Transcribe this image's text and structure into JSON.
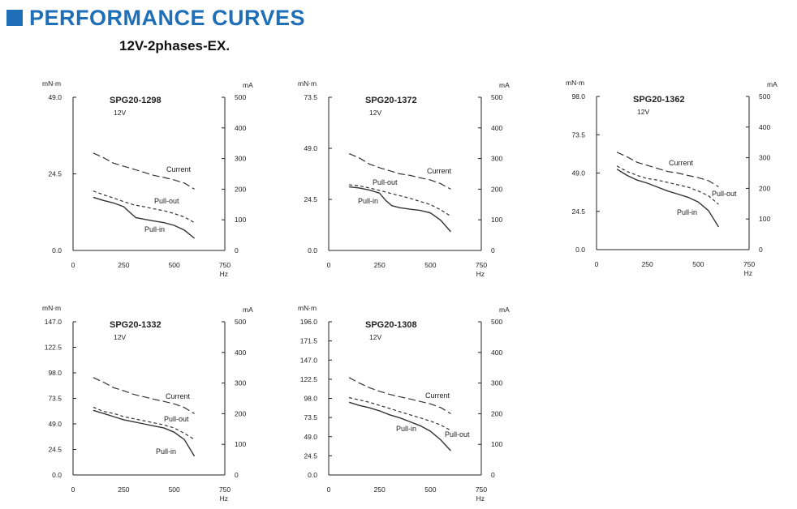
{
  "header": {
    "title": "PERFORMANCE CURVES",
    "subtitle": "12V-2phases-EX."
  },
  "colors": {
    "brand": "#1f6fb8",
    "line": "#333333"
  },
  "common": {
    "left_unit": "mN·m",
    "right_unit": "mA",
    "x_unit": "Hz",
    "x_ticks": [
      0,
      250,
      500,
      750
    ],
    "right_ticks": [
      0,
      100,
      200,
      300,
      400,
      500
    ]
  },
  "chart_data": [
    {
      "type": "line",
      "title": "SPG20-1298",
      "voltage": "12V",
      "xlim": [
        0,
        750
      ],
      "ylim_left": [
        0,
        49.0
      ],
      "left_ticks": [
        "0.0",
        "24.5",
        "49.0"
      ],
      "ylim_right": [
        0,
        500
      ],
      "series": [
        {
          "name": "Current",
          "axis": "right",
          "style": "long-dash",
          "x": [
            100,
            150,
            200,
            250,
            300,
            350,
            400,
            450,
            500,
            550,
            600
          ],
          "y": [
            318,
            303,
            285,
            275,
            265,
            255,
            245,
            238,
            230,
            220,
            200
          ]
        },
        {
          "name": "Pull-out",
          "axis": "left",
          "style": "dash",
          "x": [
            100,
            150,
            200,
            250,
            300,
            350,
            400,
            450,
            500,
            550,
            600
          ],
          "y": [
            19,
            17.8,
            16.8,
            15.6,
            14.6,
            14.0,
            13.3,
            12.7,
            11.8,
            10.7,
            8.9
          ]
        },
        {
          "name": "Pull-in",
          "axis": "left",
          "style": "solid",
          "x": [
            100,
            150,
            200,
            250,
            280,
            310,
            350,
            400,
            450,
            500,
            550,
            600
          ],
          "y": [
            17.0,
            16.0,
            15.2,
            14.0,
            12.2,
            10.5,
            10.0,
            9.4,
            8.9,
            8.0,
            6.5,
            3.9
          ]
        }
      ],
      "labels": [
        {
          "text": "Current",
          "series": "Current"
        },
        {
          "text": "Pull-out",
          "series": "Pull-out"
        },
        {
          "text": "Pull-in",
          "series": "Pull-in"
        }
      ]
    },
    {
      "type": "line",
      "title": "SPG20-1372",
      "voltage": "12V",
      "xlim": [
        0,
        750
      ],
      "ylim_left": [
        0,
        73.5
      ],
      "left_ticks": [
        "0.0",
        "24.5",
        "49.0",
        "73.5"
      ],
      "ylim_right": [
        0,
        500
      ],
      "series": [
        {
          "name": "Current",
          "axis": "right",
          "style": "long-dash",
          "x": [
            100,
            150,
            200,
            250,
            300,
            350,
            400,
            450,
            500,
            550,
            600
          ],
          "y": [
            316,
            302,
            282,
            270,
            260,
            250,
            245,
            237,
            230,
            218,
            200
          ]
        },
        {
          "name": "Pull-out",
          "axis": "left",
          "style": "dash",
          "x": [
            100,
            150,
            200,
            250,
            300,
            350,
            400,
            450,
            500,
            550,
            600
          ],
          "y": [
            31.5,
            31.0,
            30.0,
            28.8,
            27.5,
            26.3,
            25.0,
            23.5,
            22.0,
            19.5,
            16.5
          ]
        },
        {
          "name": "Pull-in",
          "axis": "left",
          "style": "solid",
          "x": [
            100,
            150,
            200,
            250,
            280,
            310,
            350,
            400,
            450,
            500,
            550,
            600
          ],
          "y": [
            30.5,
            30.0,
            29.0,
            27.5,
            24.0,
            21.5,
            20.5,
            19.8,
            19.2,
            18.0,
            14.5,
            9.0
          ]
        }
      ],
      "labels": [
        {
          "text": "Current",
          "series": "Current"
        },
        {
          "text": "Pull-out",
          "series": "Pull-out"
        },
        {
          "text": "Pull-in",
          "series": "Pull-in"
        }
      ]
    },
    {
      "type": "line",
      "title": "SPG20-1362",
      "voltage": "12V",
      "xlim": [
        0,
        750
      ],
      "ylim_left": [
        0,
        98.0
      ],
      "left_ticks": [
        "0.0",
        "24.5",
        "49.0",
        "73.5",
        "98.0"
      ],
      "ylim_right": [
        0,
        500
      ],
      "series": [
        {
          "name": "Current",
          "axis": "right",
          "style": "long-dash",
          "x": [
            100,
            150,
            200,
            250,
            300,
            350,
            400,
            450,
            500,
            550,
            600
          ],
          "y": [
            318,
            303,
            285,
            275,
            265,
            255,
            250,
            242,
            235,
            225,
            205
          ]
        },
        {
          "name": "Pull-out",
          "axis": "left",
          "style": "dash",
          "x": [
            100,
            150,
            200,
            250,
            300,
            350,
            400,
            450,
            500,
            550,
            600
          ],
          "y": [
            53.5,
            50.0,
            47.5,
            45.5,
            44.5,
            43.0,
            41.5,
            40.0,
            37.5,
            34.5,
            29.0
          ]
        },
        {
          "name": "Pull-in",
          "axis": "left",
          "style": "solid",
          "x": [
            100,
            150,
            200,
            250,
            300,
            350,
            400,
            450,
            500,
            550,
            600
          ],
          "y": [
            51.5,
            47.5,
            44.5,
            42.5,
            40.0,
            37.5,
            35.5,
            33.5,
            30.5,
            25.0,
            14.5
          ]
        }
      ],
      "labels": [
        {
          "text": "Current",
          "series": "Current"
        },
        {
          "text": "Pull-out",
          "series": "Pull-out"
        },
        {
          "text": "Pull-in",
          "series": "Pull-in"
        }
      ]
    },
    {
      "type": "line",
      "title": "SPG20-1332",
      "voltage": "12V",
      "xlim": [
        0,
        750
      ],
      "ylim_left": [
        0,
        147.0
      ],
      "left_ticks": [
        "0.0",
        "24.5",
        "49.0",
        "73.5",
        "98.0",
        "122.5",
        "147.0"
      ],
      "ylim_right": [
        0,
        500
      ],
      "series": [
        {
          "name": "Current",
          "axis": "right",
          "style": "long-dash",
          "x": [
            100,
            150,
            200,
            250,
            300,
            350,
            400,
            450,
            500,
            550,
            600
          ],
          "y": [
            318,
            303,
            285,
            275,
            263,
            255,
            247,
            240,
            232,
            220,
            200
          ]
        },
        {
          "name": "Pull-out",
          "axis": "left",
          "style": "dash",
          "x": [
            100,
            150,
            200,
            250,
            300,
            350,
            400,
            450,
            500,
            550,
            600
          ],
          "y": [
            65,
            61,
            59,
            56,
            54,
            52,
            50,
            48,
            45,
            40,
            34
          ]
        },
        {
          "name": "Pull-in",
          "axis": "left",
          "style": "solid",
          "x": [
            100,
            150,
            200,
            250,
            300,
            350,
            400,
            450,
            500,
            550,
            600
          ],
          "y": [
            62,
            59,
            56,
            53,
            51,
            49,
            47,
            45,
            41,
            34,
            18
          ]
        }
      ],
      "labels": [
        {
          "text": "Current",
          "series": "Current"
        },
        {
          "text": "Pull-out",
          "series": "Pull-out"
        },
        {
          "text": "Pull-in",
          "series": "Pull-in"
        }
      ]
    },
    {
      "type": "line",
      "title": "SPG20-1308",
      "voltage": "12V",
      "xlim": [
        0,
        750
      ],
      "ylim_left": [
        0,
        196.0
      ],
      "left_ticks": [
        "0.0",
        "24.5",
        "49.0",
        "73.5",
        "98.0",
        "122.5",
        "147.0",
        "171.5",
        "196.0"
      ],
      "ylim_right": [
        0,
        500
      ],
      "series": [
        {
          "name": "Current",
          "axis": "right",
          "style": "long-dash",
          "x": [
            100,
            150,
            200,
            250,
            300,
            350,
            400,
            450,
            500,
            550,
            600
          ],
          "y": [
            318,
            300,
            285,
            273,
            263,
            255,
            248,
            240,
            232,
            220,
            200
          ]
        },
        {
          "name": "Pull-out",
          "axis": "left",
          "style": "dash",
          "x": [
            100,
            150,
            200,
            250,
            300,
            350,
            400,
            450,
            500,
            550,
            600
          ],
          "y": [
            99,
            96,
            93,
            89,
            85,
            81,
            77,
            73,
            69,
            64,
            57
          ]
        },
        {
          "name": "Pull-in",
          "axis": "left",
          "style": "solid",
          "x": [
            100,
            150,
            200,
            250,
            300,
            350,
            400,
            450,
            500,
            550,
            600
          ],
          "y": [
            93,
            89,
            86,
            82,
            77,
            73,
            68,
            63,
            56,
            45,
            31
          ]
        }
      ],
      "labels": [
        {
          "text": "Current",
          "series": "Current"
        },
        {
          "text": "Pull-in",
          "series": "Pull-in"
        },
        {
          "text": "Pull-out",
          "series": "Pull-out"
        }
      ]
    }
  ]
}
